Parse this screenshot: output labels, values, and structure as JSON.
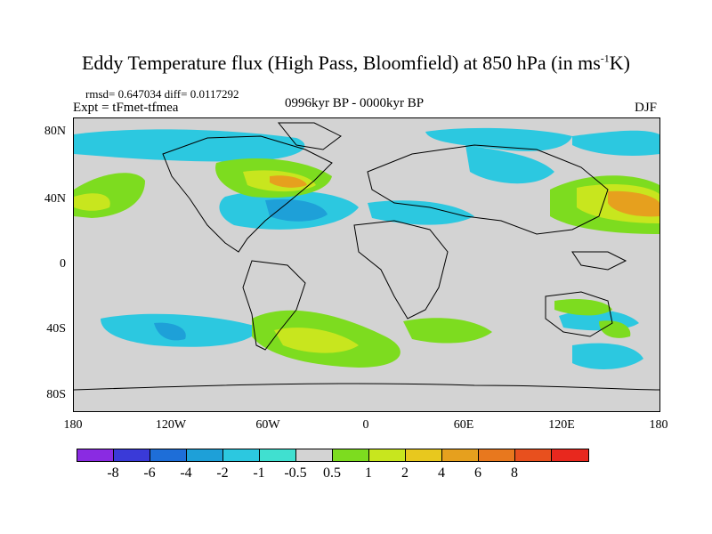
{
  "title": {
    "main": "Eddy Temperature flux (High Pass, Bloomfield) at 850 hPa (in ms",
    "sup": "-1",
    "tail": "K)"
  },
  "stats": "rmsd= 0.647034  diff= 0.0117292",
  "experiment": "Expt = tFmet-tfmea",
  "period": "0996kyr BP - 0000kyr BP",
  "season": "DJF",
  "lat_labels": [
    "80N",
    "40N",
    "0",
    "40S",
    "80S"
  ],
  "lon_labels": [
    "180",
    "120W",
    "60W",
    "0",
    "60E",
    "120E",
    "180"
  ],
  "colorbar": {
    "colors": [
      "#8a2be2",
      "#3a3ad8",
      "#1e6ed8",
      "#1ea0d8",
      "#2cc8e0",
      "#40e0d0",
      "#d3d3d3",
      "#7ddc1f",
      "#c8e61e",
      "#e8c81e",
      "#e6a01e",
      "#e8781e",
      "#e8501e",
      "#e8281e"
    ],
    "labels": [
      "-8",
      "-6",
      "-4",
      "-2",
      "-1",
      "-0.5",
      "0.5",
      "1",
      "2",
      "4",
      "6",
      "8"
    ]
  },
  "colors": {
    "land_background": "#d3d3d3",
    "coast": "#000000"
  }
}
